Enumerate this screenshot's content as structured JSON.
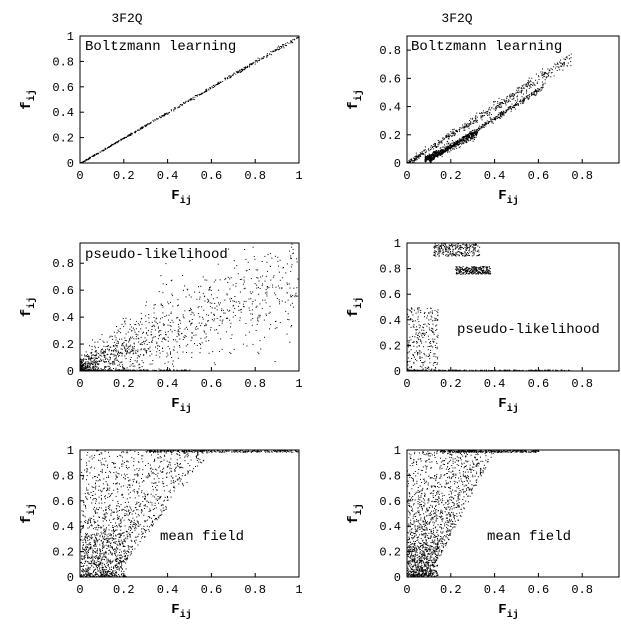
{
  "columns": [
    "3F2Q",
    "3F2Q"
  ],
  "chart_data": [
    {
      "type": "scatter",
      "panel": "top-left",
      "annotation": "Boltzmann learning",
      "xlabel": "F",
      "xlabel_sub": "ij",
      "ylabel": "f",
      "ylabel_sub": "ij",
      "xlim": [
        0,
        1
      ],
      "ylim": [
        0,
        1
      ],
      "xticks": [
        "0",
        "0.2",
        "0.4",
        "0.6",
        "0.8",
        "1"
      ],
      "yticks": [
        "0",
        "0.2",
        "0.4",
        "0.6",
        "0.8",
        "1"
      ],
      "series": [
        {
          "pattern": "diagonal",
          "x_range": [
            0,
            1
          ],
          "slope": 1.0,
          "spread": 0.005
        }
      ]
    },
    {
      "type": "scatter",
      "panel": "top-right",
      "annotation": "Boltzmann learning",
      "xlabel": "F",
      "xlabel_sub": "ij",
      "ylabel": "f",
      "ylabel_sub": "ij",
      "xlim": [
        0,
        1
      ],
      "ylim": [
        0,
        0.9
      ],
      "xticks": [
        "0",
        "0.2",
        "0.4",
        "0.6",
        "0.8"
      ],
      "yticks": [
        "0",
        "0.2",
        "0.4",
        "0.6",
        "0.8"
      ],
      "series": [
        {
          "pattern": "band",
          "x_range": [
            0,
            0.75
          ],
          "slope": 1.0,
          "spread": 0.02
        },
        {
          "pattern": "band",
          "x_range": [
            0.1,
            0.62
          ],
          "slope": 1.0,
          "offset": -0.08,
          "spread": 0.01
        },
        {
          "pattern": "band",
          "x_range": [
            0.08,
            0.32
          ],
          "slope": 0.75,
          "offset": -0.03,
          "spread": 0.02
        }
      ]
    },
    {
      "type": "scatter",
      "panel": "middle-left",
      "annotation": "pseudo-likelihood",
      "xlabel": "F",
      "xlabel_sub": "ij",
      "ylabel": "f",
      "ylabel_sub": "ij",
      "xlim": [
        0,
        1
      ],
      "ylim": [
        0,
        0.95
      ],
      "xticks": [
        "0",
        "0.2",
        "0.4",
        "0.6",
        "0.8",
        "1"
      ],
      "yticks": [
        "0",
        "0.2",
        "0.4",
        "0.6",
        "0.8"
      ],
      "series": [
        {
          "pattern": "broad",
          "x_range": [
            0,
            1
          ],
          "slope": 0.72,
          "spread": 0.22
        },
        {
          "pattern": "floor",
          "x_range": [
            0,
            0.5
          ],
          "y": 0.0
        }
      ]
    },
    {
      "type": "scatter",
      "panel": "middle-right",
      "annotation": "pseudo-likelihood",
      "xlabel": "F",
      "xlabel_sub": "ij",
      "ylabel": "f",
      "ylabel_sub": "ij",
      "xlim": [
        0,
        1
      ],
      "ylim": [
        0,
        1
      ],
      "xticks": [
        "0",
        "0.2",
        "0.4",
        "0.6",
        "0.8"
      ],
      "yticks": [
        "0",
        "0.2",
        "0.4",
        "0.6",
        "0.8",
        "1"
      ],
      "series": [
        {
          "pattern": "cluster",
          "x_range": [
            0.12,
            0.33
          ],
          "y_range": [
            0.9,
            1.0
          ]
        },
        {
          "pattern": "cluster",
          "x_range": [
            0.22,
            0.38
          ],
          "y_range": [
            0.76,
            0.82
          ]
        },
        {
          "pattern": "cluster",
          "x_range": [
            0,
            0.14
          ],
          "y_range": [
            0.0,
            0.5
          ]
        },
        {
          "pattern": "floor",
          "x_range": [
            0,
            0.75
          ],
          "y": 0.0
        }
      ]
    },
    {
      "type": "scatter",
      "panel": "bottom-left",
      "annotation": "mean field",
      "xlabel": "F",
      "xlabel_sub": "ij",
      "ylabel": "f",
      "ylabel_sub": "ij",
      "xlim": [
        0,
        1
      ],
      "ylim": [
        0,
        1
      ],
      "xticks": [
        "0",
        "0.2",
        "0.4",
        "0.6",
        "0.8",
        "1"
      ],
      "yticks": [
        "0",
        "0.2",
        "0.4",
        "0.6",
        "0.8",
        "1"
      ],
      "series": [
        {
          "pattern": "wedge",
          "x_range": [
            0,
            0.6
          ],
          "y_range": [
            0,
            1
          ]
        },
        {
          "pattern": "top",
          "x_range": [
            0.3,
            1.0
          ],
          "y": 1.0
        }
      ]
    },
    {
      "type": "scatter",
      "panel": "bottom-right",
      "annotation": "mean field",
      "xlabel": "F",
      "xlabel_sub": "ij",
      "ylabel": "f",
      "ylabel_sub": "ij",
      "xlim": [
        0,
        1
      ],
      "ylim": [
        0,
        1
      ],
      "xticks": [
        "0",
        "0.2",
        "0.4",
        "0.6",
        "0.8"
      ],
      "yticks": [
        "0",
        "0.2",
        "0.4",
        "0.6",
        "0.8",
        "1"
      ],
      "series": [
        {
          "pattern": "wedge",
          "x_range": [
            0,
            0.4
          ],
          "y_range": [
            0,
            1
          ]
        },
        {
          "pattern": "top",
          "x_range": [
            0.15,
            0.6
          ],
          "y": 1.0
        }
      ]
    }
  ]
}
